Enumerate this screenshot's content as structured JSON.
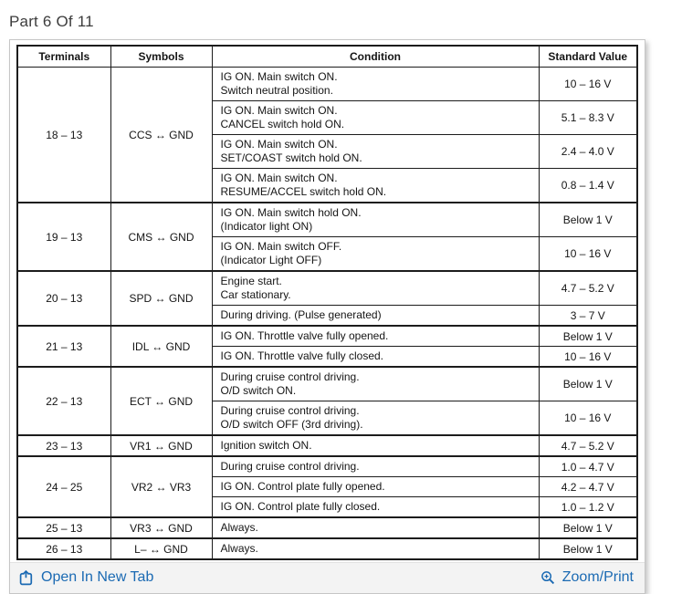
{
  "page": {
    "title": "Part 6 Of 11"
  },
  "colors": {
    "link_blue": "#1b6ab3",
    "footer_background": "#f3f3f3",
    "table_border": "#1c1c1c",
    "title_text": "#3d3d3d"
  },
  "table": {
    "headers": [
      "Terminals",
      "Symbols",
      "Condition",
      "Standard Value"
    ],
    "groups": [
      {
        "terminal": "18 – 13",
        "symbol": "CCS ↔ GND",
        "rows": [
          {
            "condition": [
              "IG ON. Main switch ON.",
              "Switch neutral position."
            ],
            "value": "10 – 16 V"
          },
          {
            "condition": [
              "IG ON. Main switch ON.",
              "CANCEL switch hold ON."
            ],
            "value": "5.1 – 8.3 V"
          },
          {
            "condition": [
              "IG ON. Main switch ON.",
              "SET/COAST switch hold ON."
            ],
            "value": "2.4 – 4.0 V"
          },
          {
            "condition": [
              "IG ON. Main switch ON.",
              "RESUME/ACCEL switch hold ON."
            ],
            "value": "0.8 – 1.4 V"
          }
        ]
      },
      {
        "terminal": "19 – 13",
        "symbol": "CMS ↔ GND",
        "rows": [
          {
            "condition": [
              "IG ON. Main switch hold ON.",
              "(Indicator light ON)"
            ],
            "value": "Below 1 V"
          },
          {
            "condition": [
              "IG ON. Main switch OFF.",
              "(Indicator Light OFF)"
            ],
            "value": "10 – 16 V"
          }
        ]
      },
      {
        "terminal": "20 – 13",
        "symbol": "SPD ↔ GND",
        "rows": [
          {
            "condition": [
              "Engine start.",
              "Car stationary."
            ],
            "value": "4.7 – 5.2 V"
          },
          {
            "condition": [
              "During driving. (Pulse generated)"
            ],
            "value": "3 – 7 V"
          }
        ]
      },
      {
        "terminal": "21 – 13",
        "symbol": "IDL ↔ GND",
        "rows": [
          {
            "condition": [
              "IG ON. Throttle valve fully opened."
            ],
            "value": "Below 1 V"
          },
          {
            "condition": [
              "IG ON. Throttle valve fully closed."
            ],
            "value": "10 – 16 V"
          }
        ]
      },
      {
        "terminal": "22 – 13",
        "symbol": "ECT ↔ GND",
        "rows": [
          {
            "condition": [
              "During cruise control driving.",
              "O/D switch ON."
            ],
            "value": "Below 1 V"
          },
          {
            "condition": [
              "During cruise control driving.",
              "O/D switch OFF (3rd driving)."
            ],
            "value": "10 – 16 V"
          }
        ]
      },
      {
        "terminal": "23 – 13",
        "symbol": "VR1 ↔ GND",
        "rows": [
          {
            "condition": [
              "Ignition switch ON."
            ],
            "value": "4.7 – 5.2 V"
          }
        ]
      },
      {
        "terminal": "24 – 25",
        "symbol": "VR2 ↔ VR3",
        "rows": [
          {
            "condition": [
              "During cruise control driving."
            ],
            "value": "1.0 – 4.7 V"
          },
          {
            "condition": [
              "IG ON. Control plate fully opened."
            ],
            "value": "4.2 – 4.7 V"
          },
          {
            "condition": [
              "IG ON. Control plate fully closed."
            ],
            "value": "1.0 – 1.2 V"
          }
        ]
      },
      {
        "terminal": "25 – 13",
        "symbol": "VR3 ↔ GND",
        "rows": [
          {
            "condition": [
              "Always."
            ],
            "value": "Below 1 V"
          }
        ]
      },
      {
        "terminal": "26 – 13",
        "symbol": "L– ↔ GND",
        "rows": [
          {
            "condition": [
              "Always."
            ],
            "value": "Below 1 V"
          }
        ]
      }
    ]
  },
  "footer": {
    "open_in_new_tab_label": "Open In New Tab",
    "zoom_print_label": "Zoom/Print",
    "icons": {
      "open_in_new_tab": "box-arrow-up-icon",
      "zoom_print": "magnifier-plus-icon"
    }
  }
}
